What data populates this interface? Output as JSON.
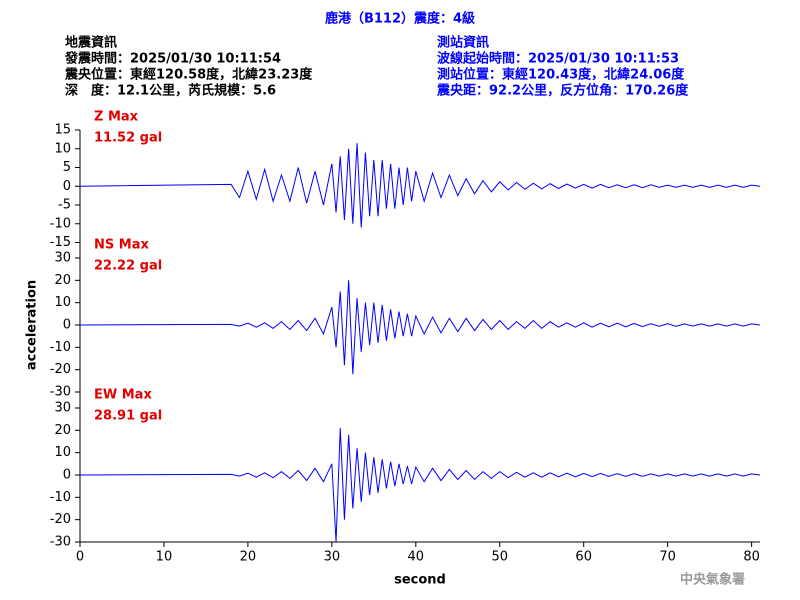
{
  "header": {
    "title": "鹿港（B112）震度：4級",
    "left": [
      "地震資訊",
      "發震時間：2025/01/30 10:11:54",
      "震央位置：東經120.58度，北緯23.23度",
      "深　度：12.1公里，芮氏規模：5.6"
    ],
    "right": [
      "測站資訊",
      "波線起始時間：2025/01/30 10:11:53",
      "測站位置：東經120.43度，北緯24.06度",
      "震央距：92.2公里，反方位角：170.26度"
    ]
  },
  "footer": "中央氣象署",
  "chart_data": [
    {
      "type": "line",
      "annotations": [
        "Z Max",
        "11.52 gal"
      ],
      "color": "#0000ff",
      "label_color": "#e00000",
      "xlim": [
        0,
        81
      ],
      "ylim": [
        -15,
        15
      ],
      "yticks": [
        -15,
        -10,
        -5,
        0,
        5,
        10,
        15
      ],
      "x": [
        0,
        18,
        19,
        20,
        21,
        22,
        23,
        24,
        25,
        26,
        27,
        28,
        29,
        30,
        30.5,
        31,
        31.5,
        32,
        32.5,
        33,
        33.5,
        34,
        34.5,
        35,
        35.5,
        36,
        36.5,
        37,
        37.5,
        38,
        38.5,
        39,
        39.5,
        40,
        41,
        42,
        43,
        44,
        45,
        46,
        47,
        48,
        49,
        50,
        51,
        52,
        53,
        54,
        55,
        56,
        57,
        58,
        59,
        60,
        61,
        62,
        63,
        64,
        65,
        66,
        67,
        68,
        69,
        70,
        71,
        72,
        73,
        74,
        75,
        76,
        77,
        78,
        79,
        80,
        81
      ],
      "values": [
        0,
        0.5,
        -3,
        4,
        -3.5,
        4.5,
        -4,
        3,
        -4,
        5,
        -4.5,
        4,
        -5,
        6,
        -7,
        8,
        -9,
        10,
        -10,
        11.5,
        -11,
        9,
        -8,
        7,
        -8,
        7,
        -6,
        6,
        -6,
        5,
        -5,
        5,
        -4,
        4,
        -4,
        3.5,
        -3,
        3,
        -2.5,
        2,
        -2,
        1.5,
        -1.5,
        1.2,
        -1,
        1,
        -0.8,
        0.8,
        -0.7,
        0.7,
        -0.6,
        0.6,
        -0.5,
        0.5,
        -0.5,
        0.5,
        -0.4,
        0.4,
        -0.4,
        0.4,
        -0.4,
        0.4,
        -0.3,
        0.3,
        -0.3,
        0.3,
        -0.3,
        0.3,
        -0.3,
        0.3,
        -0.3,
        0.3,
        -0.3,
        0.3,
        0
      ]
    },
    {
      "type": "line",
      "annotations": [
        "NS Max",
        "22.22 gal"
      ],
      "color": "#0000ff",
      "label_color": "#e00000",
      "ylabel": "acceleration",
      "xlim": [
        0,
        81
      ],
      "ylim": [
        -30,
        30
      ],
      "yticks": [
        -30,
        -20,
        -10,
        0,
        10,
        20,
        30
      ],
      "x": [
        0,
        18,
        19,
        20,
        21,
        22,
        23,
        24,
        25,
        26,
        27,
        28,
        29,
        30,
        30.5,
        31,
        31.5,
        32,
        32.5,
        33,
        33.5,
        34,
        34.5,
        35,
        35.5,
        36,
        36.5,
        37,
        37.5,
        38,
        38.5,
        39,
        39.5,
        40,
        41,
        42,
        43,
        44,
        45,
        46,
        47,
        48,
        49,
        50,
        51,
        52,
        53,
        54,
        55,
        56,
        57,
        58,
        59,
        60,
        61,
        62,
        63,
        64,
        65,
        66,
        67,
        68,
        69,
        70,
        71,
        72,
        73,
        74,
        75,
        76,
        77,
        78,
        79,
        80,
        81
      ],
      "values": [
        0,
        0.3,
        -0.5,
        0.8,
        -1,
        1,
        -1.5,
        1.5,
        -2,
        2,
        -2.5,
        3,
        -4,
        8,
        -10,
        15,
        -18,
        20,
        -22,
        12,
        -12,
        10,
        -9,
        10,
        -8,
        9,
        -7,
        7,
        -6,
        6,
        -5,
        5,
        -5,
        4,
        -4,
        3.5,
        -3.5,
        3,
        -3,
        3,
        -2.5,
        2.5,
        -2,
        2,
        -2,
        1.5,
        -1.5,
        2,
        -1.5,
        1.5,
        -1,
        1,
        -1,
        1,
        -1,
        0.8,
        -0.8,
        0.8,
        -0.8,
        0.7,
        -0.7,
        0.6,
        -0.6,
        0.6,
        -0.6,
        0.5,
        -0.5,
        0.5,
        -0.5,
        0.5,
        -0.5,
        0.5,
        -0.5,
        0.5,
        0
      ]
    },
    {
      "type": "line",
      "annotations": [
        "EW Max",
        "28.91 gal"
      ],
      "color": "#0000ff",
      "label_color": "#e00000",
      "xlabel": "second",
      "xlim": [
        0,
        81
      ],
      "xticks": [
        0,
        10,
        20,
        30,
        40,
        50,
        60,
        70,
        80
      ],
      "ylim": [
        -30,
        30
      ],
      "yticks": [
        -30,
        -20,
        -10,
        0,
        10,
        20,
        30
      ],
      "x": [
        0,
        18,
        19,
        20,
        21,
        22,
        23,
        24,
        25,
        26,
        27,
        28,
        29,
        30,
        30.5,
        31,
        31.5,
        32,
        32.5,
        33,
        33.5,
        34,
        34.5,
        35,
        35.5,
        36,
        36.5,
        37,
        37.5,
        38,
        38.5,
        39,
        39.5,
        40,
        41,
        42,
        43,
        44,
        45,
        46,
        47,
        48,
        49,
        50,
        51,
        52,
        53,
        54,
        55,
        56,
        57,
        58,
        59,
        60,
        61,
        62,
        63,
        64,
        65,
        66,
        67,
        68,
        69,
        70,
        71,
        72,
        73,
        74,
        75,
        76,
        77,
        78,
        79,
        80,
        81
      ],
      "values": [
        0,
        0.3,
        -0.5,
        0.8,
        -1,
        1,
        -1.2,
        1.5,
        -1.5,
        2,
        -2.5,
        3,
        -3,
        5,
        -30,
        21,
        -20,
        18,
        -15,
        12,
        -12,
        10,
        -9,
        8,
        -8,
        7,
        -6,
        6,
        -5,
        5,
        -4,
        4,
        -4,
        3.5,
        -3,
        3,
        -2.5,
        2.5,
        -2,
        2,
        -2,
        1.5,
        -1.5,
        1.5,
        -1.2,
        1.2,
        -1,
        1,
        -1,
        1,
        -0.8,
        0.8,
        -0.8,
        0.7,
        -0.7,
        0.7,
        -0.6,
        0.6,
        -0.6,
        0.6,
        -0.6,
        0.5,
        -0.5,
        0.5,
        -0.5,
        0.5,
        -0.5,
        0.5,
        -0.5,
        0.5,
        -0.5,
        0.5,
        -0.5,
        0.5,
        0
      ]
    }
  ]
}
